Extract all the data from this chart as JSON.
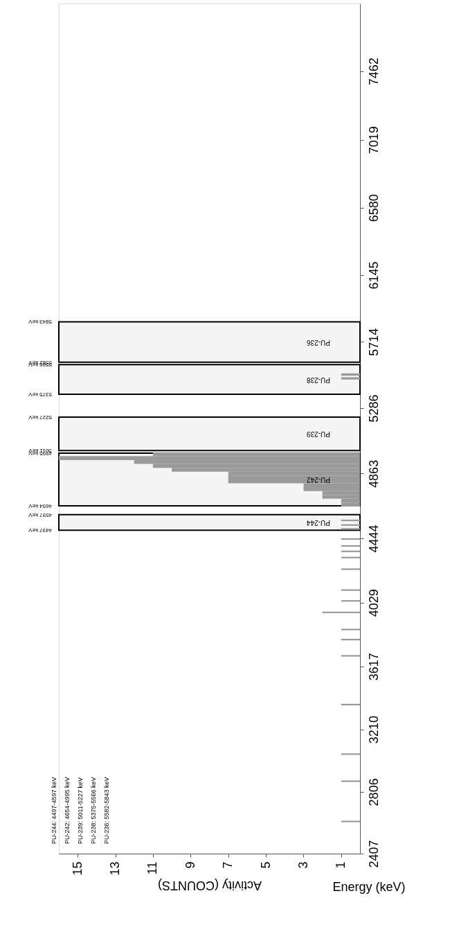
{
  "chart_data": {
    "type": "histogram",
    "orientation": "horizontal",
    "xlabel": "Activity (COUNTS)",
    "ylabel": "Energy (keV)",
    "color": "#9a9a9a",
    "bins": [
      2610,
      2620,
      2870,
      2880,
      3045,
      3055,
      3365,
      3375,
      3680,
      3690,
      3785,
      3795,
      3850,
      3860,
      3960,
      3970,
      4035,
      4045,
      4105,
      4115,
      4240,
      4250,
      4315,
      4325,
      4355,
      4365,
      4390,
      4400,
      4435,
      4445,
      4500,
      4510,
      4525,
      4535,
      4555,
      4565,
      4650,
      4675,
      4700,
      4725,
      4750,
      4775,
      4800,
      4825,
      4850,
      4875,
      4900,
      4925,
      4950,
      4975,
      5000,
      5470,
      5485,
      5495,
      5510
    ],
    "values": [
      1,
      0,
      1,
      0,
      1,
      0,
      1,
      0,
      1,
      0,
      1,
      0,
      1,
      0,
      2,
      0,
      1,
      0,
      1,
      0,
      1,
      0,
      1,
      0,
      1,
      0,
      1,
      0,
      1,
      0,
      1,
      0,
      1,
      0,
      1,
      0,
      1,
      1,
      2,
      2,
      3,
      3,
      7,
      7,
      7,
      10,
      11,
      12,
      16,
      11,
      0,
      1,
      0,
      1
    ],
    "xlim": [
      16,
      0
    ],
    "xticks": [
      15,
      13,
      11,
      9,
      7,
      5,
      3,
      1
    ],
    "ylim": [
      2407,
      7900
    ],
    "yticks": [
      2407,
      2806,
      3210,
      3617,
      4029,
      4444,
      4863,
      5286,
      5714,
      6145,
      6580,
      7019,
      7462
    ],
    "bands": [
      {
        "axis": "y",
        "from": 4497,
        "to": 4597,
        "label": "PU-244",
        "color": "#000000"
      },
      {
        "axis": "y",
        "from": 4654,
        "to": 4995,
        "label": "PU-242",
        "color": "#000000"
      },
      {
        "axis": "y",
        "from": 5011,
        "to": 5227,
        "label": "PU-239",
        "color": "#000000"
      },
      {
        "axis": "y",
        "from": 5375,
        "to": 5566,
        "label": "PU-238",
        "color": "#000000"
      },
      {
        "axis": "y",
        "from": 5582,
        "to": 5843,
        "label": "PU-236",
        "color": "#000000"
      }
    ],
    "annotations": [
      "PU-244: 4497-4597 keV",
      "PU-242: 4654-4995 keV",
      "PU-239: 5011-5227 keV",
      "PU-238: 5375-5566 keV",
      "PU-236: 5582-5843 keV",
      "4497 keV",
      "4597 keV",
      "4654 keV",
      "4995 keV",
      "5011 keV",
      "5227 keV",
      "5375 keV",
      "5566 keV",
      "5582 keV",
      "5843 keV"
    ]
  }
}
